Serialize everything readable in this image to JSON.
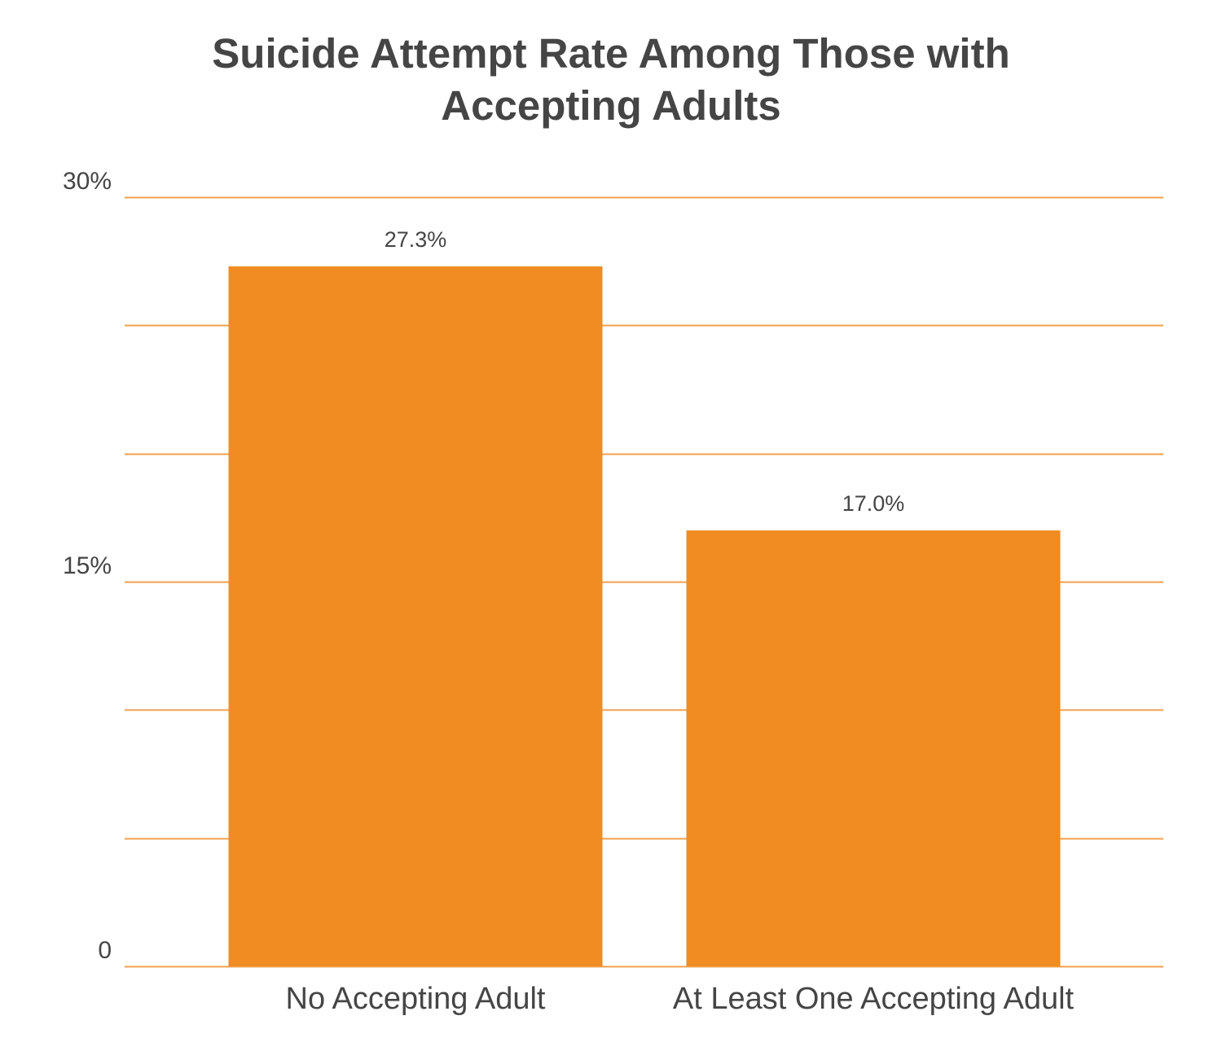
{
  "chart_data": {
    "type": "bar",
    "title_lines": [
      "Suicide Attempt Rate Among Those with",
      "Accepting Adults"
    ],
    "categories": [
      "No Accepting Adult",
      "At Least One Accepting Adult"
    ],
    "values": [
      27.3,
      17.0
    ],
    "data_labels": [
      "27.3%",
      "17.0%"
    ],
    "ylim": [
      0,
      30
    ],
    "gridline_step": 5,
    "y_tick_labels": [
      {
        "value": 0,
        "label": "0"
      },
      {
        "value": 15,
        "label": "15%"
      },
      {
        "value": 30,
        "label": "30%"
      }
    ],
    "xlabel": "",
    "ylabel": "",
    "grid": true,
    "legend": "none",
    "bar_color": "#F08C21",
    "grid_color": "#F0A050",
    "text_color": "#454545"
  }
}
